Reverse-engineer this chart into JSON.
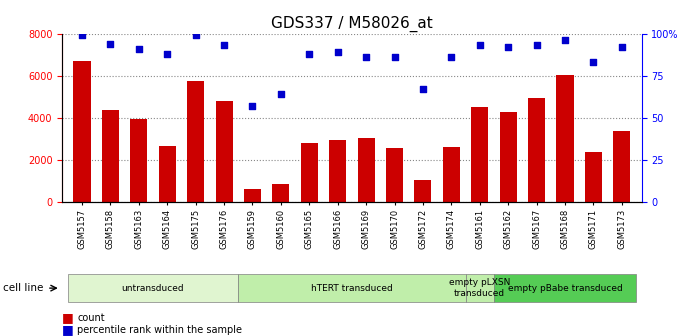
{
  "title": "GDS337 / M58026_at",
  "samples": [
    "GSM5157",
    "GSM5158",
    "GSM5163",
    "GSM5164",
    "GSM5175",
    "GSM5176",
    "GSM5159",
    "GSM5160",
    "GSM5165",
    "GSM5166",
    "GSM5169",
    "GSM5170",
    "GSM5172",
    "GSM5174",
    "GSM5161",
    "GSM5162",
    "GSM5167",
    "GSM5168",
    "GSM5171",
    "GSM5173"
  ],
  "counts": [
    6700,
    4350,
    3950,
    2650,
    5750,
    4800,
    600,
    850,
    2800,
    2950,
    3050,
    2550,
    1050,
    2600,
    4500,
    4250,
    4950,
    6050,
    2350,
    3350
  ],
  "percentiles": [
    99,
    94,
    91,
    88,
    99,
    93,
    57,
    64,
    88,
    89,
    86,
    86,
    67,
    86,
    93,
    92,
    93,
    96,
    83,
    92
  ],
  "bar_color": "#cc0000",
  "dot_color": "#0000cc",
  "ylim_left": [
    0,
    8000
  ],
  "ylim_right": [
    0,
    100
  ],
  "yticks_left": [
    0,
    2000,
    4000,
    6000,
    8000
  ],
  "yticks_right": [
    0,
    25,
    50,
    75,
    100
  ],
  "yticklabels_right": [
    "0",
    "25",
    "50",
    "75",
    "100%"
  ],
  "groups": [
    {
      "label": "untransduced",
      "start": 0,
      "end": 5,
      "color": "#e0f5d0"
    },
    {
      "label": "hTERT transduced",
      "start": 6,
      "end": 13,
      "color": "#c0eeaa"
    },
    {
      "label": "empty pLXSN\ntransduced",
      "start": 14,
      "end": 14,
      "color": "#c0eeaa"
    },
    {
      "label": "empty pBabe transduced",
      "start": 15,
      "end": 19,
      "color": "#55cc55"
    }
  ],
  "cell_line_label": "cell line",
  "legend_count_label": "count",
  "legend_percentile_label": "percentile rank within the sample",
  "grid_color": "#888888",
  "bg_color": "#ffffff",
  "title_fontsize": 11,
  "tick_fontsize": 7,
  "label_fontsize": 8
}
